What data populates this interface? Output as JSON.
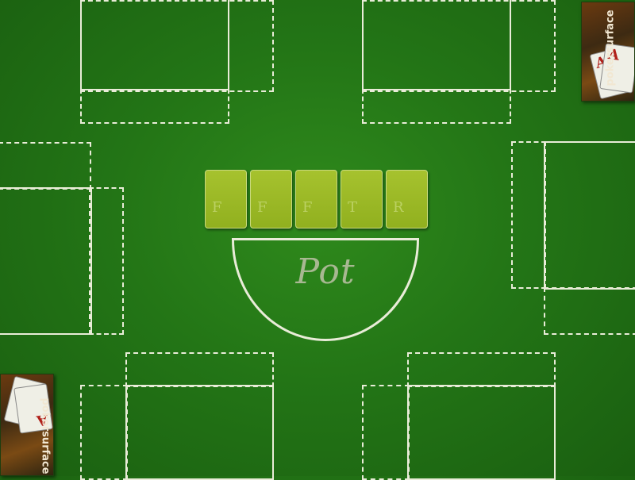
{
  "board": {
    "cards": [
      {
        "label": "F"
      },
      {
        "label": "F"
      },
      {
        "label": "F"
      },
      {
        "label": "T"
      },
      {
        "label": "R"
      }
    ]
  },
  "pot": {
    "label": "Pot"
  },
  "logo": {
    "rank": "A",
    "brand": "pokersurface"
  },
  "colors": {
    "felt": "#237516",
    "line": "#e9ecd8",
    "card": "#9db828"
  }
}
